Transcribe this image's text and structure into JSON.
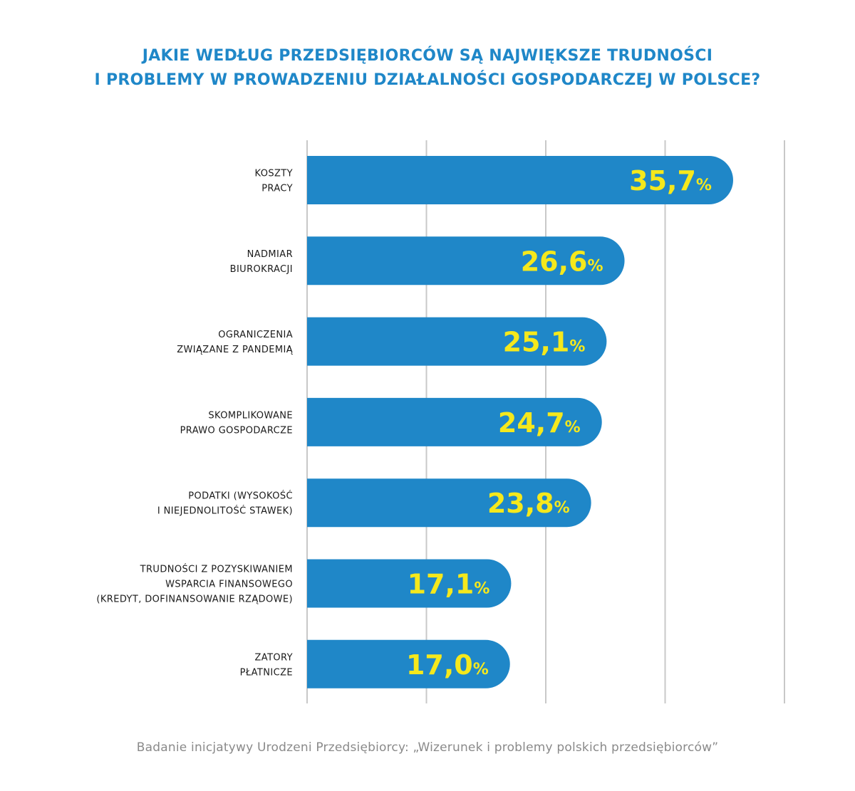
{
  "title": {
    "line1": "JAKIE WEDŁUG PRZEDSIĘBIORCÓW SĄ NAJWIĘKSZE TRUDNOŚCI",
    "line2": "I PROBLEMY W PROWADZENIU DZIAŁALNOŚCI GOSPODARCZEJ W POLSCE?"
  },
  "source": "Badanie inicjatywy Urodzeni Przedsiębiorcy: „Wizerunek i problemy polskich przedsiębiorców”",
  "colors": {
    "title": "#1f87c8",
    "bar": "#1f87c8",
    "value_text": "#f5e81c",
    "gridline": "#c8c8c8",
    "label_text": "#1a1a1a",
    "source_text": "#8a8a8a"
  },
  "chart_data": {
    "type": "bar",
    "orientation": "horizontal",
    "categories": [
      [
        "KOSZTY",
        "PRACY"
      ],
      [
        "NADMIAR",
        "BIUROKRACJI"
      ],
      [
        "OGRANICZENIA",
        "ZWIĄZANE Z PANDEMIĄ"
      ],
      [
        "SKOMPLIKOWANE",
        "PRAWO GOSPODARCZE"
      ],
      [
        "PODATKI (WYSOKOŚĆ",
        "I NIEJEDNOLITOŚĆ STAWEK)"
      ],
      [
        "TRUDNOŚCI Z POZYSKIWANIEM",
        "WSPARCIA FINANSOWEGO",
        "(KREDYT, DOFINANSOWANIE RZĄDOWE)"
      ],
      [
        "ZATORY",
        "PŁATNICZE"
      ]
    ],
    "values": [
      35.7,
      26.6,
      25.1,
      24.7,
      23.8,
      17.1,
      17.0
    ],
    "value_labels": [
      "35,7",
      "26,6",
      "25,1",
      "24,7",
      "23,8",
      "17,1",
      "17,0"
    ],
    "value_unit": "%",
    "xlim": [
      0,
      40
    ],
    "grid": true,
    "xlabel": "",
    "ylabel": ""
  }
}
